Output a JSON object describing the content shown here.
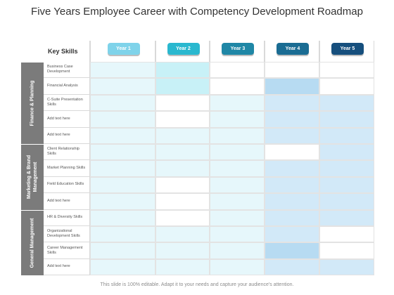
{
  "title": "Five Years Employee Career with Competency Development Roadmap",
  "footer": "This slide is 100% editable. Adapt it to your needs and capture your audience's attention.",
  "header": {
    "key_skills": "Key Skills",
    "years": [
      "Year 1",
      "Year 2",
      "Year 3",
      "Year 4",
      "Year 5"
    ]
  },
  "colors": {
    "year_buttons": [
      "#7fd3ea",
      "#2ab8cf",
      "#1f87a6",
      "#1a6c93",
      "#164f7d"
    ],
    "fill_light": "#e6f7fb",
    "fill_aqua": "#c8f1f7",
    "fill_blue": "#b7dbf2",
    "fill_pale": "#d2e9f8",
    "category_bar": "#7b7b7b"
  },
  "groups": [
    {
      "label": "Finance & Planning",
      "rows": 5
    },
    {
      "label": "Marketing & Brand Management",
      "rows": 4
    },
    {
      "label": "General Management",
      "rows": 4
    }
  ],
  "skills": [
    "Business Case Development",
    "Financial Analysis",
    "C-Suite Presentation Skills",
    "Add text here",
    "Add text here",
    "Client Relationship Skills",
    "Market Planning Skills",
    "Field Education Skills",
    "Add text here",
    "HR & Diversity Skills",
    "Organizational Development Skills",
    "Career Management Skills",
    "Add text here"
  ],
  "grid_fill": [
    [
      "light",
      "aqua",
      "none",
      "none",
      "none"
    ],
    [
      "light",
      "aqua",
      "none",
      "blue",
      "none"
    ],
    [
      "light",
      "none",
      "light",
      "pale",
      "pale"
    ],
    [
      "light",
      "none",
      "light",
      "pale",
      "pale"
    ],
    [
      "light",
      "light",
      "light",
      "pale",
      "pale"
    ],
    [
      "light",
      "light",
      "light",
      "none",
      "pale"
    ],
    [
      "light",
      "light",
      "light",
      "pale",
      "pale"
    ],
    [
      "light",
      "none",
      "light",
      "pale",
      "pale"
    ],
    [
      "light",
      "none",
      "light",
      "pale",
      "pale"
    ],
    [
      "light",
      "none",
      "light",
      "pale",
      "pale"
    ],
    [
      "light",
      "light",
      "light",
      "pale",
      "none"
    ],
    [
      "light",
      "light",
      "light",
      "blue",
      "none"
    ],
    [
      "light",
      "light",
      "light",
      "pale",
      "pale"
    ]
  ]
}
